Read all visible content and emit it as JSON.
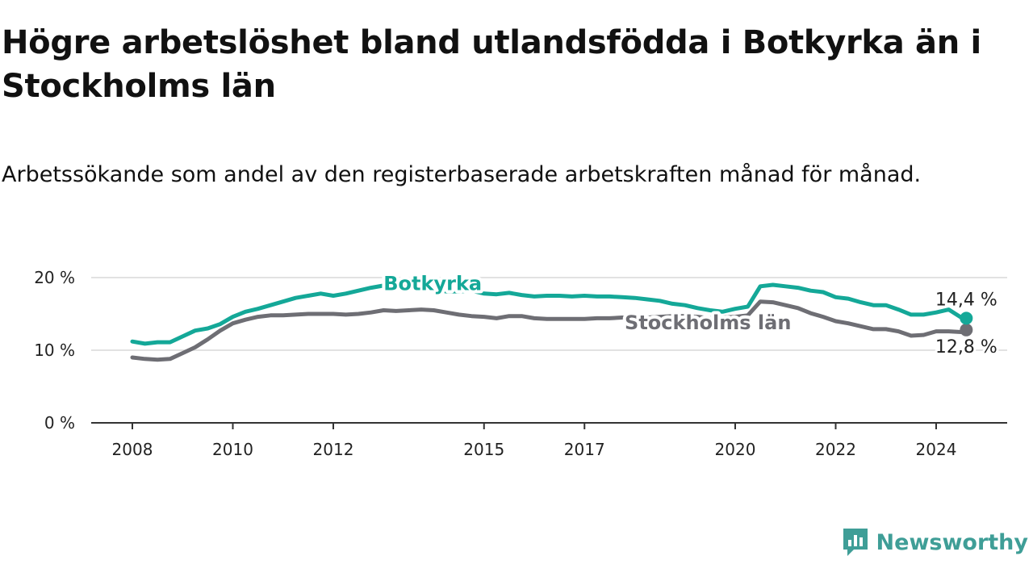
{
  "title": "Högre arbetslöshet bland utlandsfödda i Botkyrka än i Stockholms län",
  "subtitle": "Arbetssökande som andel av den registerbaserade arbetskraften månad för månad.",
  "brand": {
    "name": "Newsworthy",
    "color": "#3f9e97"
  },
  "chart_data": {
    "type": "line",
    "title": "Högre arbetslöshet bland utlandsfödda i Botkyrka än i Stockholms län",
    "xlabel": "",
    "ylabel": "",
    "ylim": [
      0,
      20
    ],
    "xlim": [
      2007.25,
      2026.0
    ],
    "grid": true,
    "y_ticks": [
      {
        "value": 0,
        "label": "0 %"
      },
      {
        "value": 10,
        "label": "10 %"
      },
      {
        "value": 20,
        "label": "20 %"
      }
    ],
    "x_ticks": [
      {
        "value": 2008.0,
        "label": "2008"
      },
      {
        "value": 2010.0,
        "label": "2010"
      },
      {
        "value": 2012.0,
        "label": "2012"
      },
      {
        "value": 2015.0,
        "label": "2015"
      },
      {
        "value": 2017.0,
        "label": "2017"
      },
      {
        "value": 2020.0,
        "label": "2020"
      },
      {
        "value": 2022.0,
        "label": "2022"
      },
      {
        "value": 2024.0,
        "label": "2024"
      }
    ],
    "series": [
      {
        "name": "Botkyrka",
        "color": "#14a898",
        "end_label": "14,4 %",
        "x": [
          2008.0,
          2008.25,
          2008.5,
          2008.75,
          2009.0,
          2009.25,
          2009.5,
          2009.75,
          2010.0,
          2010.25,
          2010.5,
          2010.75,
          2011.0,
          2011.25,
          2011.5,
          2011.75,
          2012.0,
          2012.25,
          2012.5,
          2012.75,
          2013.0,
          2013.25,
          2013.5,
          2013.75,
          2014.0,
          2014.25,
          2014.5,
          2014.75,
          2015.0,
          2015.25,
          2015.5,
          2015.75,
          2016.0,
          2016.25,
          2016.5,
          2016.75,
          2017.0,
          2017.25,
          2017.5,
          2017.75,
          2018.0,
          2018.25,
          2018.5,
          2018.75,
          2019.0,
          2019.25,
          2019.5,
          2019.75,
          2020.0,
          2020.25,
          2020.5,
          2020.75,
          2021.0,
          2021.25,
          2021.5,
          2021.75,
          2022.0,
          2022.25,
          2022.5,
          2022.75,
          2023.0,
          2023.25,
          2023.5,
          2023.75,
          2024.0,
          2024.25,
          2024.5,
          2024.6
        ],
        "values": [
          11.2,
          10.9,
          11.1,
          11.1,
          11.9,
          12.7,
          13.0,
          13.6,
          14.6,
          15.3,
          15.7,
          16.2,
          16.7,
          17.2,
          17.5,
          17.8,
          17.5,
          17.8,
          18.2,
          18.6,
          18.9,
          18.8,
          18.7,
          18.7,
          18.4,
          18.1,
          18.1,
          18.2,
          17.8,
          17.7,
          17.9,
          17.6,
          17.4,
          17.5,
          17.5,
          17.4,
          17.5,
          17.4,
          17.4,
          17.3,
          17.2,
          17.0,
          16.8,
          16.4,
          16.2,
          15.8,
          15.5,
          15.3,
          15.7,
          16.0,
          18.8,
          19.0,
          18.8,
          18.6,
          18.2,
          18.0,
          17.3,
          17.1,
          16.6,
          16.2,
          16.2,
          15.6,
          14.9,
          14.9,
          15.2,
          15.6,
          14.5,
          14.4
        ]
      },
      {
        "name": "Stockholms län",
        "color": "#6e6e74",
        "end_label": "12,8 %",
        "x": [
          2008.0,
          2008.25,
          2008.5,
          2008.75,
          2009.0,
          2009.25,
          2009.5,
          2009.75,
          2010.0,
          2010.25,
          2010.5,
          2010.75,
          2011.0,
          2011.25,
          2011.5,
          2011.75,
          2012.0,
          2012.25,
          2012.5,
          2012.75,
          2013.0,
          2013.25,
          2013.5,
          2013.75,
          2014.0,
          2014.25,
          2014.5,
          2014.75,
          2015.0,
          2015.25,
          2015.5,
          2015.75,
          2016.0,
          2016.25,
          2016.5,
          2016.75,
          2017.0,
          2017.25,
          2017.5,
          2017.75,
          2018.0,
          2018.25,
          2018.5,
          2018.75,
          2019.0,
          2019.25,
          2019.5,
          2019.75,
          2020.0,
          2020.25,
          2020.5,
          2020.75,
          2021.0,
          2021.25,
          2021.5,
          2021.75,
          2022.0,
          2022.25,
          2022.5,
          2022.75,
          2023.0,
          2023.25,
          2023.5,
          2023.75,
          2024.0,
          2024.25,
          2024.5,
          2024.6
        ],
        "values": [
          9.0,
          8.8,
          8.7,
          8.8,
          9.6,
          10.4,
          11.5,
          12.7,
          13.7,
          14.2,
          14.6,
          14.8,
          14.8,
          14.9,
          15.0,
          15.0,
          15.0,
          14.9,
          15.0,
          15.2,
          15.5,
          15.4,
          15.5,
          15.6,
          15.5,
          15.2,
          14.9,
          14.7,
          14.6,
          14.4,
          14.7,
          14.7,
          14.4,
          14.3,
          14.3,
          14.3,
          14.3,
          14.4,
          14.4,
          14.5,
          14.5,
          14.5,
          14.6,
          14.7,
          14.7,
          14.6,
          14.4,
          14.5,
          14.6,
          14.8,
          16.7,
          16.6,
          16.2,
          15.8,
          15.1,
          14.6,
          14.0,
          13.7,
          13.3,
          12.9,
          12.9,
          12.6,
          12.0,
          12.1,
          12.6,
          12.6,
          12.5,
          12.8
        ]
      }
    ]
  }
}
